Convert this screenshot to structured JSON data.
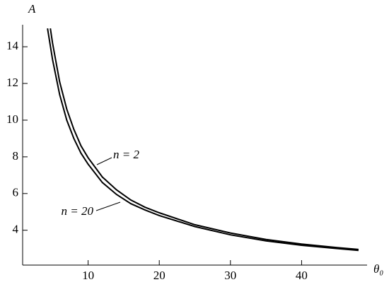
{
  "chart_data": {
    "type": "line",
    "x_label": "θ₀",
    "y_label": "A",
    "xlim": [
      0.8,
      49.2
    ],
    "ylim": [
      2.1,
      15.2
    ],
    "xticks": [
      10,
      20,
      30,
      40
    ],
    "yticks": [
      4,
      6,
      8,
      10,
      12,
      14
    ],
    "series": [
      {
        "name": "n = 2",
        "color": "#000000",
        "x": [
          4.7,
          5,
          6,
          7,
          8,
          9,
          10,
          12,
          14,
          16,
          18,
          20,
          25,
          30,
          35,
          40,
          45,
          48
        ],
        "values": [
          15.0,
          14.2,
          12.1,
          10.6,
          9.5,
          8.6,
          7.95,
          6.9,
          6.2,
          5.65,
          5.25,
          4.95,
          4.3,
          3.85,
          3.5,
          3.25,
          3.05,
          2.95
        ]
      },
      {
        "name": "n = 20",
        "color": "#000000",
        "x": [
          4.3,
          5,
          6,
          7,
          8,
          9,
          10,
          12,
          14,
          16,
          18,
          20,
          25,
          30,
          35,
          40,
          45,
          48
        ],
        "values": [
          15.0,
          13.3,
          11.4,
          10.0,
          9.0,
          8.2,
          7.6,
          6.6,
          5.95,
          5.45,
          5.1,
          4.8,
          4.2,
          3.75,
          3.42,
          3.18,
          3.0,
          2.9
        ]
      }
    ]
  }
}
